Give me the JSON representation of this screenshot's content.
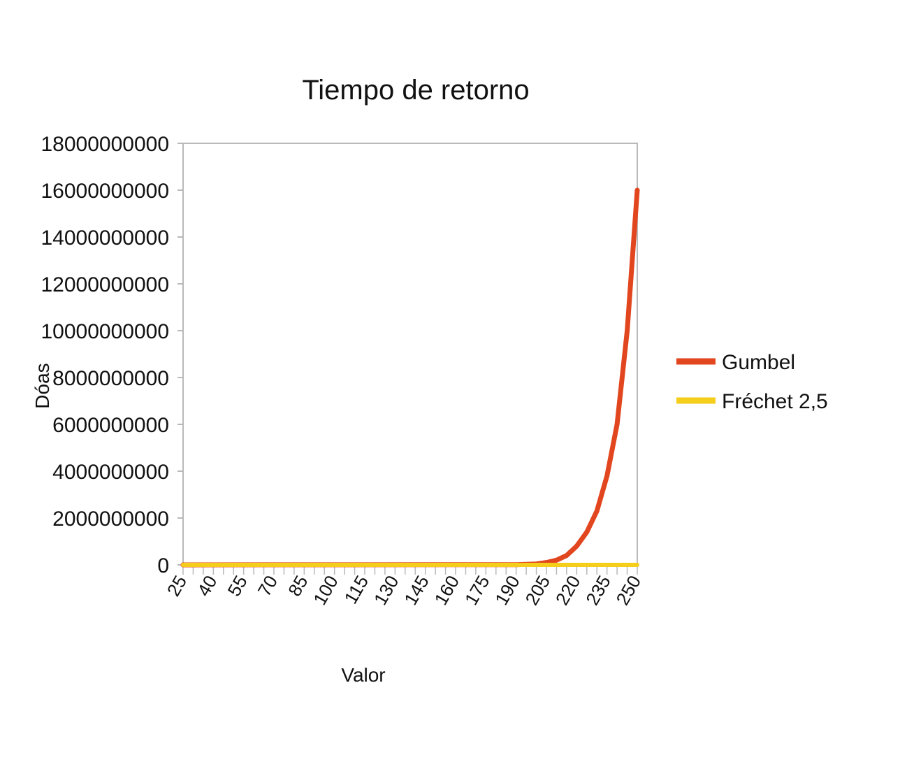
{
  "chart_data": {
    "type": "line",
    "title": "Tiempo de retorno",
    "xlabel": "Valor",
    "ylabel": "Dóas",
    "ylim": [
      0,
      18000000000
    ],
    "yticks": [
      0,
      2000000000,
      4000000000,
      6000000000,
      8000000000,
      10000000000,
      12000000000,
      14000000000,
      16000000000,
      18000000000
    ],
    "xlim": [
      25,
      250
    ],
    "xticks": [
      25,
      40,
      55,
      70,
      85,
      100,
      115,
      130,
      145,
      160,
      175,
      190,
      205,
      220,
      235,
      250
    ],
    "grid": false,
    "legend": "right",
    "series": [
      {
        "name": "Gumbel",
        "color": "#e2461f",
        "x": [
          25,
          190,
          195,
          200,
          205,
          210,
          215,
          220,
          225,
          230,
          235,
          240,
          245,
          250
        ],
        "values": [
          0,
          10000000,
          20000000,
          40000000,
          100000000,
          200000000,
          400000000,
          800000000,
          1400000000,
          2300000000,
          3800000000,
          6000000000,
          10000000000,
          16000000000
        ]
      },
      {
        "name": "Fréchet 2,5",
        "color": "#f5cd1b",
        "x": [
          25,
          250
        ],
        "values": [
          0,
          0
        ]
      }
    ]
  }
}
